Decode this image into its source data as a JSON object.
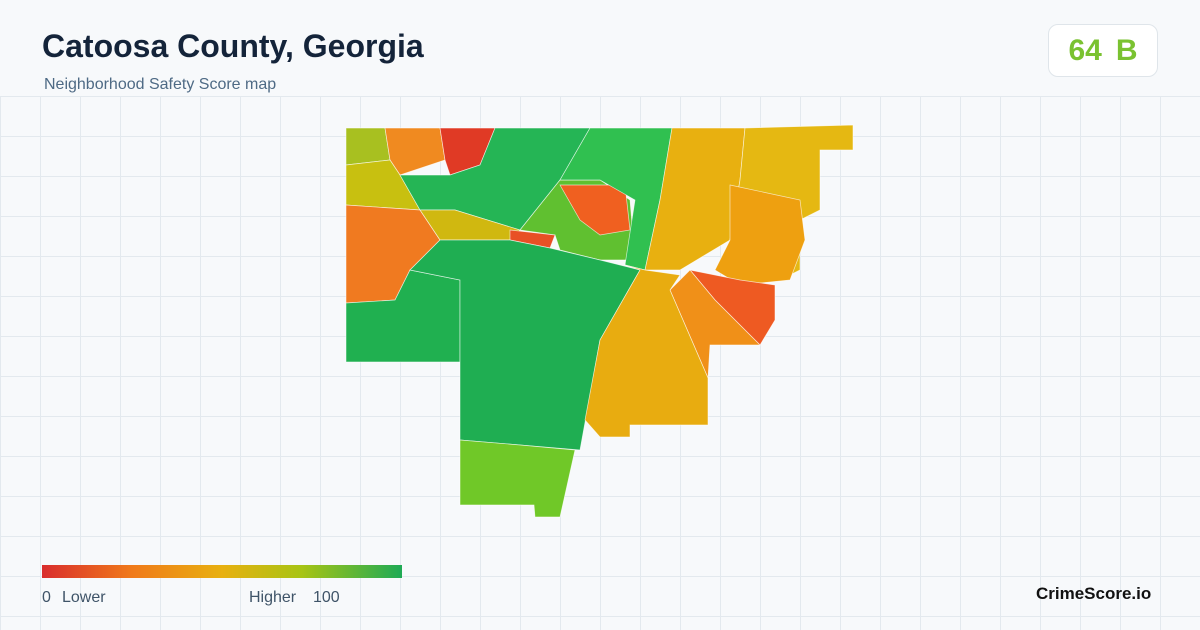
{
  "header": {
    "title": "Catoosa County, Georgia",
    "subtitle": "Neighborhood Safety Score map"
  },
  "score": {
    "value": 64,
    "grade": "B"
  },
  "legend": {
    "min": 0,
    "min_label": "Lower",
    "max_label": "Higher",
    "max": 100
  },
  "brand": "CrimeScore.io"
}
